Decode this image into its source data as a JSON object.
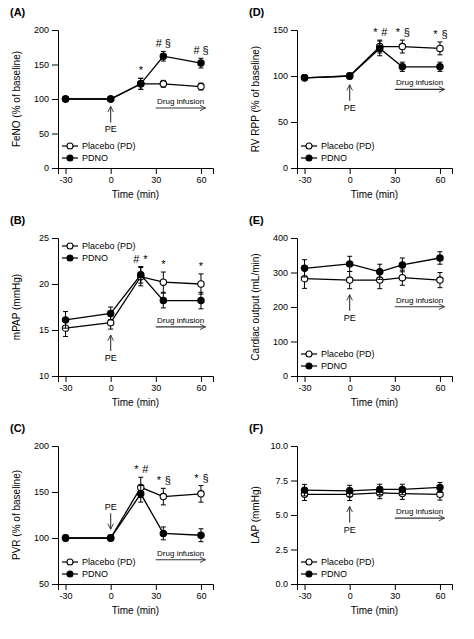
{
  "chart_data": [
    {
      "type": "line",
      "title": "(A)",
      "x_label": "Time (min)",
      "y_label": "FeNO (% of baseline)",
      "x": [
        -30,
        0,
        20,
        35,
        60
      ],
      "series": [
        {
          "name": "Placebo (PD)",
          "color": "black",
          "marker": "open-circle",
          "values": [
            100,
            100,
            122,
            122,
            118
          ],
          "errors": [
            2,
            2,
            8,
            5,
            5
          ]
        },
        {
          "name": "PDNO",
          "color": "black",
          "marker": "circle",
          "values": [
            100,
            100,
            122,
            162,
            152
          ],
          "errors": [
            2,
            2,
            8,
            7,
            7
          ]
        }
      ],
      "xlim": [
        -35,
        68
      ],
      "xticks": [
        -30,
        0,
        30,
        60
      ],
      "ylim": [
        0,
        200
      ],
      "yticks": [
        0,
        50,
        100,
        150,
        200
      ],
      "legend": "lower left",
      "annotations": [
        {
          "text": "PE",
          "x": 0,
          "marker": "arrow"
        },
        {
          "text": "Drug infusion",
          "x": [
            30,
            63
          ],
          "marker": "arrow"
        },
        {
          "text": "*",
          "x": 20
        },
        {
          "text": "#",
          "x": 35
        },
        {
          "text": "§",
          "x": 35
        },
        {
          "text": "#",
          "x": 60
        },
        {
          "text": "§",
          "x": 60
        }
      ]
    },
    {
      "type": "line",
      "title": "(B)",
      "x_label": "Time (min)",
      "y_label": "mPAP (mmHg)",
      "x": [
        -30,
        0,
        20,
        35,
        60
      ],
      "series": [
        {
          "name": "Placebo (PD)",
          "color": "black",
          "marker": "open-circle",
          "values": [
            15.2,
            15.8,
            20.8,
            20.2,
            20.0
          ],
          "errors": [
            0.9,
            0.7,
            1.0,
            1.1,
            1.1
          ]
        },
        {
          "name": "PDNO",
          "color": "black",
          "marker": "circle",
          "values": [
            16.1,
            16.8,
            21.0,
            18.2,
            18.2
          ],
          "errors": [
            0.9,
            0.7,
            0.9,
            0.8,
            0.9
          ]
        }
      ],
      "xlim": [
        -35,
        68
      ],
      "xticks": [
        -30,
        0,
        30,
        60
      ],
      "ylim": [
        10,
        25
      ],
      "yticks": [
        10,
        15,
        20,
        25
      ],
      "legend": "upper left",
      "annotations": [
        {
          "text": "PE",
          "x": 0,
          "marker": "arrow"
        },
        {
          "text": "Drug infusion",
          "x": [
            30,
            63
          ],
          "marker": "arrow"
        },
        {
          "text": "#",
          "x": 20
        },
        {
          "text": "*",
          "x": 20
        },
        {
          "text": "*",
          "x": 35
        },
        {
          "text": "*",
          "x": 60
        }
      ]
    },
    {
      "type": "line",
      "title": "(C)",
      "x_label": "Time (min)",
      "y_label": "PVR (% of baseline)",
      "x": [
        -30,
        0,
        20,
        35,
        60
      ],
      "series": [
        {
          "name": "Placebo (PD)",
          "color": "black",
          "marker": "open-circle",
          "values": [
            100,
            100,
            155,
            145,
            148
          ],
          "errors": [
            3,
            3,
            11,
            9,
            9
          ]
        },
        {
          "name": "PDNO",
          "color": "black",
          "marker": "circle",
          "values": [
            100,
            100,
            148,
            105,
            103
          ],
          "errors": [
            3,
            3,
            9,
            7,
            7
          ]
        }
      ],
      "xlim": [
        -35,
        68
      ],
      "xticks": [
        -30,
        0,
        30,
        60
      ],
      "ylim": [
        50,
        200
      ],
      "yticks": [
        50,
        100,
        150,
        200
      ],
      "legend": "lower left",
      "annotations": [
        {
          "text": "PE",
          "x": 0,
          "marker": "arrow"
        },
        {
          "text": "Drug infusion",
          "x": [
            30,
            63
          ],
          "marker": "arrow"
        },
        {
          "text": "*",
          "x": 20
        },
        {
          "text": "#",
          "x": 20
        },
        {
          "text": "*",
          "x": 35
        },
        {
          "text": "§",
          "x": 35
        },
        {
          "text": "*",
          "x": 60
        },
        {
          "text": "§",
          "x": 60
        }
      ]
    },
    {
      "type": "line",
      "title": "(D)",
      "x_label": "Time (min)",
      "y_label": "RV RPP (% of baseline)",
      "x": [
        -30,
        0,
        20,
        35,
        60
      ],
      "series": [
        {
          "name": "Placebo (PD)",
          "color": "black",
          "marker": "open-circle",
          "values": [
            98,
            100,
            132,
            132,
            130
          ],
          "errors": [
            3,
            3,
            7,
            7,
            7
          ]
        },
        {
          "name": "PDNO",
          "color": "black",
          "marker": "circle",
          "values": [
            98,
            100,
            130,
            110,
            110
          ],
          "errors": [
            3,
            3,
            8,
            5,
            5
          ]
        }
      ],
      "xlim": [
        -35,
        68
      ],
      "xticks": [
        -30,
        0,
        30,
        60
      ],
      "ylim": [
        0,
        150
      ],
      "yticks": [
        0,
        50,
        100,
        150
      ],
      "legend": "lower left",
      "annotations": [
        {
          "text": "PE",
          "x": 0,
          "marker": "arrow"
        },
        {
          "text": "Drug infusion",
          "x": [
            30,
            63
          ],
          "marker": "arrow"
        },
        {
          "text": "*",
          "x": 20
        },
        {
          "text": "#",
          "x": 20
        },
        {
          "text": "*",
          "x": 35
        },
        {
          "text": "§",
          "x": 35
        },
        {
          "text": "*",
          "x": 60
        },
        {
          "text": "§",
          "x": 60
        }
      ]
    },
    {
      "type": "line",
      "title": "(E)",
      "x_label": "Time (min)",
      "y_label": "Cardiac output (mL/min)",
      "x": [
        -30,
        0,
        20,
        35,
        60
      ],
      "series": [
        {
          "name": "Placebo (PD)",
          "color": "black",
          "marker": "open-circle",
          "values": [
            282,
            278,
            278,
            285,
            278
          ],
          "errors": [
            28,
            25,
            25,
            22,
            22
          ]
        },
        {
          "name": "PDNO",
          "color": "black",
          "marker": "circle",
          "values": [
            312,
            325,
            302,
            322,
            342
          ],
          "errors": [
            25,
            22,
            22,
            20,
            18
          ]
        }
      ],
      "xlim": [
        -35,
        68
      ],
      "xticks": [
        -30,
        0,
        30,
        60
      ],
      "ylim": [
        0,
        400
      ],
      "yticks": [
        0,
        100,
        200,
        300,
        400
      ],
      "legend": "lower left",
      "annotations": [
        {
          "text": "PE",
          "x": 0,
          "marker": "arrow"
        },
        {
          "text": "Drug infusion",
          "x": [
            30,
            63
          ],
          "marker": "arrow"
        }
      ]
    },
    {
      "type": "line",
      "title": "(F)",
      "x_label": "Time (min)",
      "y_label": "LAP (mmHg)",
      "x": [
        -30,
        0,
        20,
        35,
        60
      ],
      "series": [
        {
          "name": "Placebo (PD)",
          "color": "black",
          "marker": "open-circle",
          "values": [
            6.5,
            6.5,
            6.6,
            6.55,
            6.5
          ],
          "errors": [
            0.45,
            0.45,
            0.42,
            0.42,
            0.42
          ]
        },
        {
          "name": "PDNO",
          "color": "black",
          "marker": "circle",
          "values": [
            6.8,
            6.75,
            6.85,
            6.85,
            7.0
          ],
          "errors": [
            0.42,
            0.4,
            0.38,
            0.38,
            0.36
          ]
        }
      ],
      "xlim": [
        -35,
        68
      ],
      "xticks": [
        -30,
        0,
        30,
        60
      ],
      "ylim": [
        0,
        10
      ],
      "yticks": [
        {
          "value": 0,
          "label": "0.0"
        },
        2.5,
        {
          "value": 5,
          "label": "5.0"
        },
        7.5,
        {
          "value": 10,
          "label": "10.0"
        }
      ],
      "legend": "lower left",
      "annotations": [
        {
          "text": "PE",
          "x": 0,
          "marker": "arrow"
        },
        {
          "text": "Drug infusion",
          "x": [
            30,
            63
          ],
          "marker": "arrow"
        }
      ]
    }
  ]
}
